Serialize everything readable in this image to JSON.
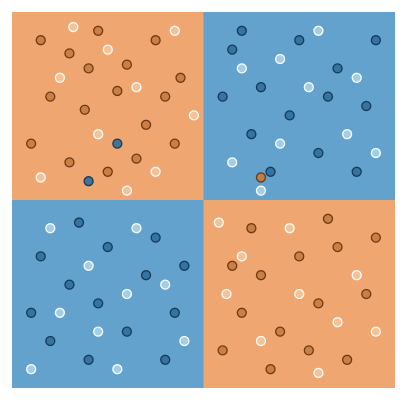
{
  "chart_data": {
    "type": "scatter",
    "xlim": [
      -1,
      1
    ],
    "ylim": [
      -1,
      1
    ],
    "regions": [
      {
        "x": [
          -1,
          0
        ],
        "y": [
          0,
          1
        ],
        "color": "#f0a670"
      },
      {
        "x": [
          0,
          1
        ],
        "y": [
          0,
          1
        ],
        "color": "#62a2cc"
      },
      {
        "x": [
          -1,
          0
        ],
        "y": [
          -1,
          0
        ],
        "color": "#62a2cc"
      },
      {
        "x": [
          0,
          1
        ],
        "y": [
          -1,
          0
        ],
        "color": "#f0a670"
      }
    ],
    "series": [
      {
        "color": "#c97a3e",
        "edge": "#6b3a18",
        "x": [
          -0.85,
          -0.7,
          -0.55,
          -0.4,
          -0.25,
          -0.12,
          -0.8,
          -0.62,
          -0.45,
          -0.3,
          -0.15,
          -0.9,
          -0.7,
          -0.5,
          -0.35,
          -0.6,
          -0.2,
          0.15,
          0.3,
          0.5,
          0.7,
          0.85,
          0.2,
          0.4,
          0.6,
          0.75,
          0.35,
          0.55,
          0.9,
          0.25,
          0.1,
          0.65,
          0.3
        ],
        "values": [
          0.85,
          0.78,
          0.9,
          0.72,
          0.85,
          0.65,
          0.55,
          0.48,
          0.58,
          0.4,
          0.3,
          0.3,
          0.2,
          0.15,
          0.22,
          0.7,
          0.55,
          -0.35,
          -0.4,
          -0.3,
          -0.25,
          -0.5,
          -0.6,
          -0.7,
          -0.55,
          -0.85,
          -0.9,
          -0.8,
          -0.2,
          -0.15,
          -0.8,
          -0.1,
          0.12
        ]
      },
      {
        "color": "#f7c49a",
        "edge": "#ffffff",
        "x": [
          -0.75,
          -0.5,
          -0.35,
          -0.15,
          -0.85,
          -0.55,
          -0.25,
          -0.05,
          -0.68,
          -0.4,
          0.12,
          0.45,
          0.8,
          0.3,
          0.6,
          0.9,
          0.2,
          0.5,
          0.7,
          0.08
        ],
        "values": [
          0.65,
          0.8,
          0.6,
          0.9,
          0.12,
          0.35,
          0.15,
          0.45,
          0.92,
          0.05,
          -0.5,
          -0.15,
          -0.4,
          -0.75,
          -0.92,
          -0.7,
          -0.3,
          -0.5,
          -0.65,
          -0.12
        ]
      },
      {
        "color": "#2f6f9e",
        "edge": "#173a55",
        "x": [
          0.15,
          0.3,
          0.5,
          0.7,
          0.85,
          0.25,
          0.45,
          0.6,
          0.8,
          0.35,
          0.2,
          0.65,
          -0.85,
          -0.7,
          -0.5,
          -0.3,
          -0.15,
          -0.8,
          -0.6,
          -0.4,
          -0.2,
          -0.55,
          -0.25,
          -0.9,
          -0.1,
          -0.65,
          0.1,
          0.9,
          -0.45,
          -0.6
        ],
        "values": [
          0.8,
          0.6,
          0.85,
          0.7,
          0.5,
          0.35,
          0.45,
          0.25,
          0.15,
          0.15,
          0.9,
          0.55,
          -0.3,
          -0.45,
          -0.25,
          -0.4,
          -0.6,
          -0.75,
          -0.85,
          -0.7,
          -0.85,
          -0.55,
          -0.2,
          -0.6,
          -0.35,
          -0.12,
          0.55,
          0.85,
          0.3,
          0.1
        ]
      },
      {
        "color": "#a9d3ee",
        "edge": "#ffffff",
        "x": [
          0.2,
          0.4,
          0.55,
          0.75,
          0.9,
          0.4,
          0.15,
          0.6,
          0.3,
          0.8,
          -0.8,
          -0.6,
          -0.4,
          -0.2,
          -0.75,
          -0.45,
          -0.1,
          -0.35,
          -0.9,
          -0.55
        ],
        "values": [
          0.7,
          0.75,
          0.6,
          0.35,
          0.25,
          0.3,
          0.2,
          0.9,
          0.05,
          0.65,
          -0.15,
          -0.35,
          -0.5,
          -0.45,
          -0.6,
          -0.9,
          -0.75,
          -0.15,
          -0.9,
          -0.7
        ]
      }
    ]
  }
}
